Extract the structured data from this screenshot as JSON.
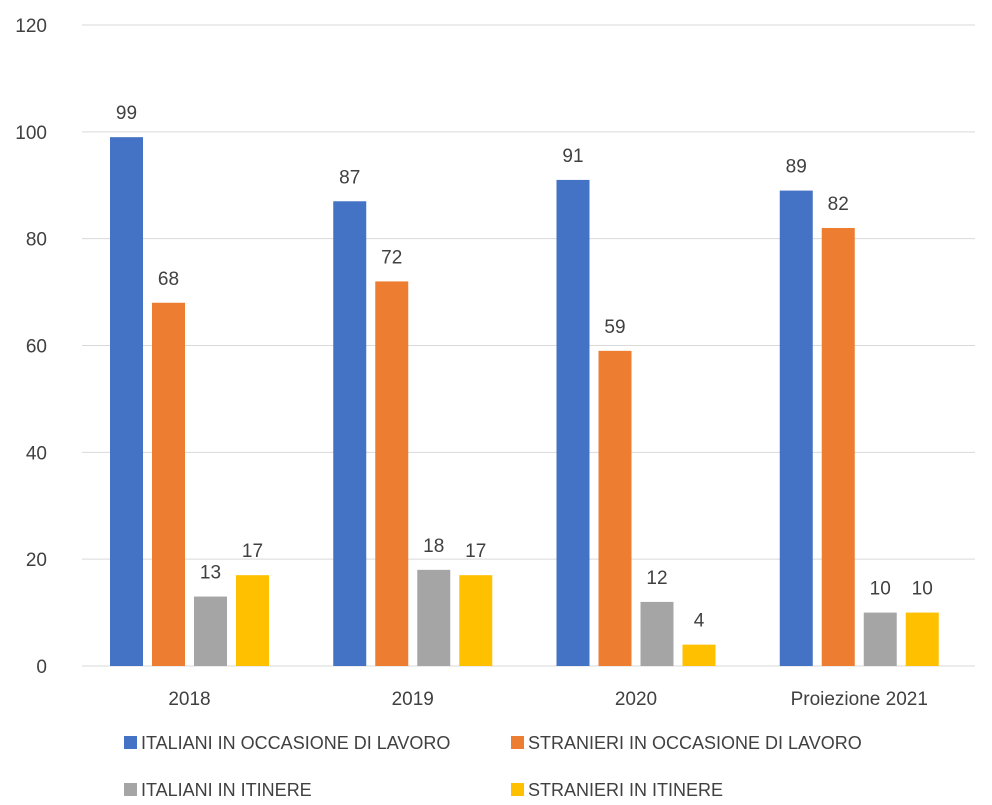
{
  "chart_data": {
    "type": "bar",
    "categories": [
      "2018",
      "2019",
      "2020",
      "Proiezione 2021"
    ],
    "series": [
      {
        "name": "ITALIANI IN OCCASIONE DI LAVORO",
        "color": "#4472c4",
        "values": [
          99,
          87,
          91,
          89
        ]
      },
      {
        "name": "STRANIERI IN OCCASIONE DI LAVORO",
        "color": "#ed7d31",
        "values": [
          68,
          72,
          59,
          82
        ]
      },
      {
        "name": "ITALIANI IN ITINERE",
        "color": "#a5a5a5",
        "values": [
          13,
          18,
          12,
          10
        ]
      },
      {
        "name": "STRANIERI IN ITINERE",
        "color": "#ffc000",
        "values": [
          17,
          17,
          4,
          10
        ]
      }
    ],
    "ylim": [
      0,
      120
    ],
    "yticks": [
      0,
      20,
      40,
      60,
      80,
      100,
      120
    ],
    "grid": true,
    "legend_position": "bottom"
  }
}
